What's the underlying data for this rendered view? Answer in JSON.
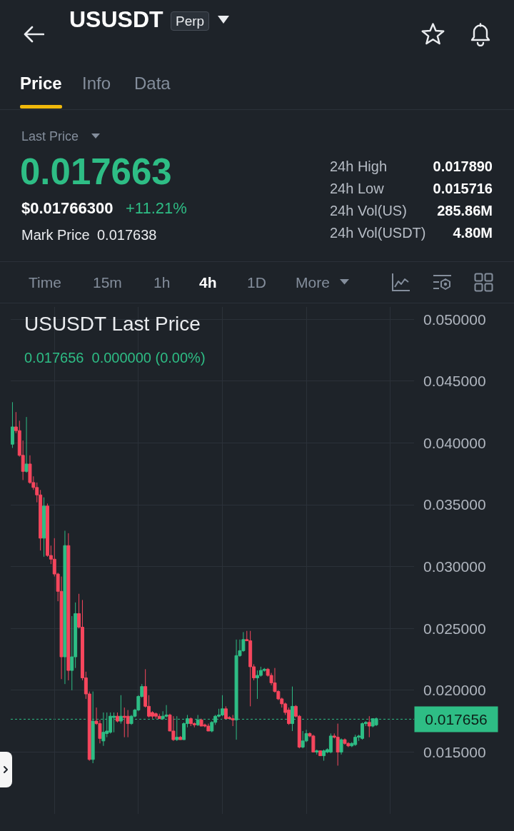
{
  "chart_data": {
    "type": "candlestick",
    "title": "USUSDT Last Price",
    "subtitle": "0.017656  0.000000 (0.00%)",
    "annotations": [
      "USUSDT",
      "Perp",
      "Price",
      "Info",
      "Data",
      "Last Price",
      "0.017663",
      "$0.01766300",
      "+11.21%",
      "Mark Price",
      "0.017638",
      "24h High",
      "0.017890",
      "24h Low",
      "0.015716",
      "24h Vol(US)",
      "285.86M",
      "24h Vol(USDT)",
      "4.80M",
      "Time",
      "15m",
      "1h",
      "4h",
      "1D",
      "More"
    ],
    "categories": [
      null,
      null,
      null,
      null,
      null,
      null,
      null,
      null,
      null,
      null,
      null,
      null,
      null,
      null,
      null,
      null,
      null,
      null,
      null,
      null,
      null,
      null,
      null,
      null,
      null,
      null,
      null,
      null,
      null,
      null,
      null,
      null,
      null,
      null,
      null,
      null,
      null,
      null,
      null,
      null,
      null,
      null,
      null,
      null,
      null,
      null,
      null,
      null,
      null,
      null,
      null,
      null,
      null,
      null,
      null,
      null,
      null,
      null,
      null,
      null,
      null,
      null,
      null,
      null,
      null,
      null,
      null,
      null,
      null,
      null,
      null,
      null,
      null,
      null,
      null,
      null,
      null,
      null,
      null,
      null,
      null,
      null,
      null,
      null,
      null,
      null,
      null,
      null,
      null,
      null,
      null,
      null,
      null,
      null,
      null,
      null,
      null,
      null,
      null,
      null,
      null,
      null,
      null,
      null,
      null
    ],
    "ohlc": [
      [
        0.0399,
        0.0433,
        0.0396,
        0.0413
      ],
      [
        0.0413,
        0.0425,
        0.0408,
        0.041
      ],
      [
        0.041,
        0.0418,
        0.0389,
        0.039
      ],
      [
        0.039,
        0.0402,
        0.037,
        0.0377
      ],
      [
        0.0377,
        0.0421,
        0.0376,
        0.0383
      ],
      [
        0.0383,
        0.039,
        0.0367,
        0.0368
      ],
      [
        0.0368,
        0.0373,
        0.0362,
        0.0364
      ],
      [
        0.0364,
        0.0368,
        0.0352,
        0.0358
      ],
      [
        0.0358,
        0.0362,
        0.0313,
        0.0323
      ],
      [
        0.0323,
        0.0356,
        0.0308,
        0.0349
      ],
      [
        0.0349,
        0.0351,
        0.0308,
        0.0309
      ],
      [
        0.0309,
        0.0317,
        0.0302,
        0.0306
      ],
      [
        0.0306,
        0.0323,
        0.0292,
        0.0294
      ],
      [
        0.0294,
        0.0295,
        0.0272,
        0.028
      ],
      [
        0.028,
        0.0292,
        0.0209,
        0.0227
      ],
      [
        0.0227,
        0.0329,
        0.0205,
        0.0317
      ],
      [
        0.0317,
        0.0327,
        0.0208,
        0.0216
      ],
      [
        0.0216,
        0.026,
        0.02,
        0.0227
      ],
      [
        0.0227,
        0.0271,
        0.0218,
        0.0262
      ],
      [
        0.0262,
        0.0278,
        0.025,
        0.0251
      ],
      [
        0.0251,
        0.0273,
        0.0208,
        0.021
      ],
      [
        0.021,
        0.0215,
        0.0193,
        0.0197
      ],
      [
        0.0197,
        0.0199,
        0.0143,
        0.0144
      ],
      [
        0.0144,
        0.0199,
        0.0141,
        0.0175
      ],
      [
        0.0175,
        0.0186,
        0.0172,
        0.0173
      ],
      [
        0.0173,
        0.0176,
        0.0157,
        0.0161
      ],
      [
        0.0159,
        0.0182,
        0.0155,
        0.0166
      ],
      [
        0.0165,
        0.0182,
        0.0162,
        0.0167
      ],
      [
        0.0166,
        0.0182,
        0.0165,
        0.0179
      ],
      [
        0.0178,
        0.0182,
        0.0166,
        0.0179
      ],
      [
        0.0179,
        0.0182,
        0.0174,
        0.0175
      ],
      [
        0.0175,
        0.0196,
        0.0173,
        0.0179
      ],
      [
        0.0179,
        0.0186,
        0.0162,
        0.0178
      ],
      [
        0.0179,
        0.0184,
        0.0162,
        0.0173
      ],
      [
        0.0173,
        0.018,
        0.0172,
        0.0179
      ],
      [
        0.0179,
        0.0185,
        0.0178,
        0.0184
      ],
      [
        0.0184,
        0.0196,
        0.0183,
        0.0195
      ],
      [
        0.0195,
        0.0205,
        0.0194,
        0.0203
      ],
      [
        0.0203,
        0.0217,
        0.0186,
        0.0187
      ],
      [
        0.0187,
        0.0196,
        0.0178,
        0.0179
      ],
      [
        0.0182,
        0.0183,
        0.0177,
        0.0179
      ],
      [
        0.0181,
        0.0182,
        0.0177,
        0.0179
      ],
      [
        0.0179,
        0.0181,
        0.0177,
        0.0177
      ],
      [
        0.0177,
        0.0183,
        0.0176,
        0.0179
      ],
      [
        0.0179,
        0.0188,
        0.0178,
        0.018
      ],
      [
        0.018,
        0.0181,
        0.0167,
        0.0167
      ],
      [
        0.0167,
        0.0179,
        0.0159,
        0.016
      ],
      [
        0.016,
        0.0179,
        0.0159,
        0.0162
      ],
      [
        0.0162,
        0.0163,
        0.016,
        0.016
      ],
      [
        0.016,
        0.0174,
        0.016,
        0.0173
      ],
      [
        0.0173,
        0.018,
        0.017,
        0.0177
      ],
      [
        0.0177,
        0.0178,
        0.0171,
        0.0173
      ],
      [
        0.0173,
        0.0174,
        0.017,
        0.0172
      ],
      [
        0.0172,
        0.018,
        0.0171,
        0.0176
      ],
      [
        0.0176,
        0.0177,
        0.0171,
        0.0171
      ],
      [
        0.0172,
        0.0173,
        0.017,
        0.0171
      ],
      [
        0.0171,
        0.0173,
        0.0167,
        0.0167
      ],
      [
        0.0167,
        0.0175,
        0.0166,
        0.0174
      ],
      [
        0.0174,
        0.018,
        0.0172,
        0.0179
      ],
      [
        0.0179,
        0.0185,
        0.0178,
        0.018
      ],
      [
        0.018,
        0.0196,
        0.0179,
        0.0185
      ],
      [
        0.0185,
        0.0187,
        0.0177,
        0.0177
      ],
      [
        0.0178,
        0.0179,
        0.0177,
        0.0177
      ],
      [
        0.0177,
        0.018,
        0.0171,
        0.0176
      ],
      [
        0.0176,
        0.0241,
        0.016,
        0.0228
      ],
      [
        0.0228,
        0.0241,
        0.0227,
        0.0232
      ],
      [
        0.0232,
        0.0247,
        0.0231,
        0.0241
      ],
      [
        0.0241,
        0.0248,
        0.024,
        0.024
      ],
      [
        0.024,
        0.0248,
        0.0187,
        0.0219
      ],
      [
        0.0219,
        0.0221,
        0.0208,
        0.021
      ],
      [
        0.021,
        0.0216,
        0.0193,
        0.0212
      ],
      [
        0.0212,
        0.0219,
        0.0211,
        0.0216
      ],
      [
        0.0216,
        0.0218,
        0.0215,
        0.0217
      ],
      [
        0.0217,
        0.0218,
        0.0211,
        0.0212
      ],
      [
        0.0212,
        0.0214,
        0.0204,
        0.0206
      ],
      [
        0.0206,
        0.0218,
        0.0198,
        0.0199
      ],
      [
        0.0199,
        0.02,
        0.0192,
        0.0193
      ],
      [
        0.0193,
        0.0194,
        0.0186,
        0.0189
      ],
      [
        0.0189,
        0.019,
        0.018,
        0.0182
      ],
      [
        0.0184,
        0.0186,
        0.0172,
        0.0173
      ],
      [
        0.0173,
        0.0203,
        0.0167,
        0.0187
      ],
      [
        0.0187,
        0.0188,
        0.0178,
        0.0179
      ],
      [
        0.0179,
        0.018,
        0.0153,
        0.0154
      ],
      [
        0.0154,
        0.0167,
        0.0153,
        0.0159
      ],
      [
        0.0159,
        0.0168,
        0.0158,
        0.0165
      ],
      [
        0.0165,
        0.0166,
        0.0162,
        0.0163
      ],
      [
        0.0163,
        0.0164,
        0.015,
        0.015
      ],
      [
        0.015,
        0.0152,
        0.0148,
        0.0151
      ],
      [
        0.0151,
        0.0151,
        0.0147,
        0.0147
      ],
      [
        0.0147,
        0.0152,
        0.0143,
        0.0151
      ],
      [
        0.015,
        0.0153,
        0.0149,
        0.0152
      ],
      [
        0.015,
        0.0165,
        0.0149,
        0.0163
      ],
      [
        0.0163,
        0.0165,
        0.0161,
        0.0162
      ],
      [
        0.0162,
        0.0173,
        0.0139,
        0.015
      ],
      [
        0.015,
        0.0161,
        0.0148,
        0.016
      ],
      [
        0.016,
        0.0161,
        0.0156,
        0.0157
      ],
      [
        0.0157,
        0.0158,
        0.0154,
        0.0155
      ],
      [
        0.0155,
        0.0158,
        0.0154,
        0.0157
      ],
      [
        0.0156,
        0.0164,
        0.0155,
        0.0162
      ],
      [
        0.0162,
        0.0164,
        0.0159,
        0.0163
      ],
      [
        0.0161,
        0.0174,
        0.016,
        0.0173
      ],
      [
        0.0173,
        0.0175,
        0.0171,
        0.0174
      ],
      [
        0.0174,
        0.0179,
        0.0162,
        0.0171
      ],
      [
        0.0171,
        0.0177,
        0.017,
        0.0177
      ],
      [
        0.0172,
        0.0178,
        0.0171,
        0.0177
      ]
    ],
    "colors": [
      "#2ebd85",
      "#f6465d",
      "#f6465d",
      "#f6465d",
      "#2ebd85",
      "#f6465d",
      "#f6465d",
      "#f6465d",
      "#f6465d",
      "#2ebd85",
      "#f6465d",
      "#f6465d",
      "#f6465d",
      "#f6465d",
      "#f6465d",
      "#2ebd85",
      "#f6465d",
      "#2ebd85",
      "#2ebd85",
      "#f6465d",
      "#f6465d",
      "#f6465d",
      "#f6465d",
      "#2ebd85",
      "#f6465d",
      "#f6465d",
      "#2ebd85",
      "#2ebd85",
      "#2ebd85",
      "#2ebd85",
      "#f6465d",
      "#2ebd85",
      "#f6465d",
      "#f6465d",
      "#2ebd85",
      "#2ebd85",
      "#2ebd85",
      "#2ebd85",
      "#f6465d",
      "#f6465d",
      "#f6465d",
      "#f6465d",
      "#f6465d",
      "#2ebd85",
      "#2ebd85",
      "#f6465d",
      "#f6465d",
      "#2ebd85",
      "#f6465d",
      "#2ebd85",
      "#2ebd85",
      "#f6465d",
      "#f6465d",
      "#2ebd85",
      "#f6465d",
      "#f6465d",
      "#f6465d",
      "#2ebd85",
      "#2ebd85",
      "#2ebd85",
      "#2ebd85",
      "#f6465d",
      "#f6465d",
      "#f6465d",
      "#2ebd85",
      "#2ebd85",
      "#2ebd85",
      "#f6465d",
      "#f6465d",
      "#f6465d",
      "#2ebd85",
      "#2ebd85",
      "#2ebd85",
      "#f6465d",
      "#f6465d",
      "#f6465d",
      "#f6465d",
      "#f6465d",
      "#f6465d",
      "#f6465d",
      "#2ebd85",
      "#f6465d",
      "#f6465d",
      "#2ebd85",
      "#2ebd85",
      "#f6465d",
      "#f6465d",
      "#2ebd85",
      "#f6465d",
      "#2ebd85",
      "#2ebd85",
      "#2ebd85",
      "#f6465d",
      "#f6465d",
      "#2ebd85",
      "#f6465d",
      "#f6465d",
      "#2ebd85",
      "#2ebd85",
      "#2ebd85",
      "#2ebd85",
      "#2ebd85",
      "#f6465d",
      "#2ebd85",
      "#2ebd85"
    ],
    "ylim": [
      0.01,
      0.051
    ],
    "yticks": [
      {
        "value": 0.015,
        "label": "0.015000"
      },
      {
        "value": 0.02,
        "label": "0.020000"
      },
      {
        "value": 0.025,
        "label": "0.025000"
      },
      {
        "value": 0.03,
        "label": "0.030000"
      },
      {
        "value": 0.035,
        "label": "0.035000"
      },
      {
        "value": 0.04,
        "label": "0.040000"
      },
      {
        "value": 0.045,
        "label": "0.045000"
      },
      {
        "value": 0.05,
        "label": "0.050000"
      }
    ],
    "tick_labels": "y",
    "grid": true,
    "ref_lines": [
      {
        "axis": "y",
        "value": 0.017656,
        "label": "0.017656",
        "color": "#2ebd85",
        "line_style": "dotted"
      }
    ]
  }
}
